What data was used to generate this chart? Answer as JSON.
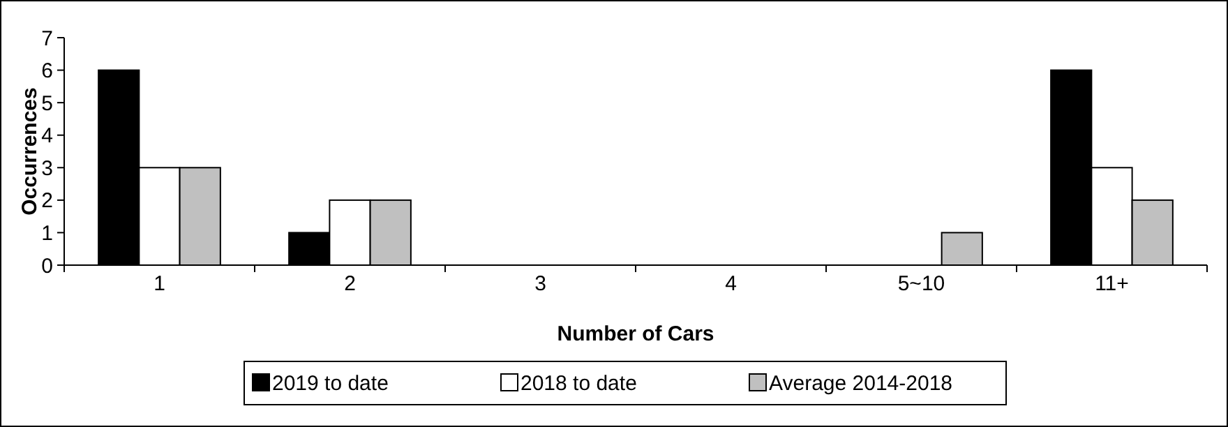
{
  "chart_data": {
    "type": "bar",
    "xlabel": "Number of Cars",
    "ylabel": "Occurrences",
    "categories": [
      "1",
      "2",
      "3",
      "4",
      "5~10",
      "11+"
    ],
    "series": [
      {
        "name": "2019 to date",
        "color": "#000000",
        "values": [
          6,
          1,
          0,
          0,
          0,
          6
        ]
      },
      {
        "name": "2018 to date",
        "color": "#ffffff",
        "values": [
          3,
          2,
          0,
          0,
          0,
          3
        ]
      },
      {
        "name": "Average 2014-2018",
        "color": "#c0c0c0",
        "values": [
          3,
          2,
          0,
          0,
          1,
          2
        ]
      }
    ],
    "ylim": [
      0,
      7
    ],
    "yticks": [
      0,
      1,
      2,
      3,
      4,
      5,
      6,
      7
    ],
    "grid": false,
    "legend": "bottom"
  }
}
